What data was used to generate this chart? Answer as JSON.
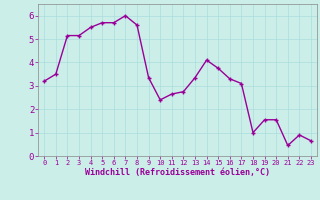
{
  "x": [
    0,
    1,
    2,
    3,
    4,
    5,
    6,
    7,
    8,
    9,
    10,
    11,
    12,
    13,
    14,
    15,
    16,
    17,
    18,
    19,
    20,
    21,
    22,
    23
  ],
  "y": [
    3.2,
    3.5,
    5.15,
    5.15,
    5.5,
    5.7,
    5.7,
    6.0,
    5.6,
    3.35,
    2.4,
    2.65,
    2.75,
    3.35,
    4.1,
    3.75,
    3.3,
    3.1,
    1.0,
    1.55,
    1.55,
    0.45,
    0.9,
    0.65
  ],
  "line_color": "#990099",
  "marker": "+",
  "bg_color": "#cceee8",
  "grid_color": "#aadddd",
  "xlabel": "Windchill (Refroidissement éolien,°C)",
  "xlabel_color": "#990099",
  "tick_color": "#990099",
  "ylim": [
    0,
    6.5
  ],
  "xlim": [
    -0.5,
    23.5
  ],
  "yticks": [
    0,
    1,
    2,
    3,
    4,
    5,
    6
  ],
  "xticks": [
    0,
    1,
    2,
    3,
    4,
    5,
    6,
    7,
    8,
    9,
    10,
    11,
    12,
    13,
    14,
    15,
    16,
    17,
    18,
    19,
    20,
    21,
    22,
    23
  ],
  "line_width": 1.0,
  "marker_size": 3
}
